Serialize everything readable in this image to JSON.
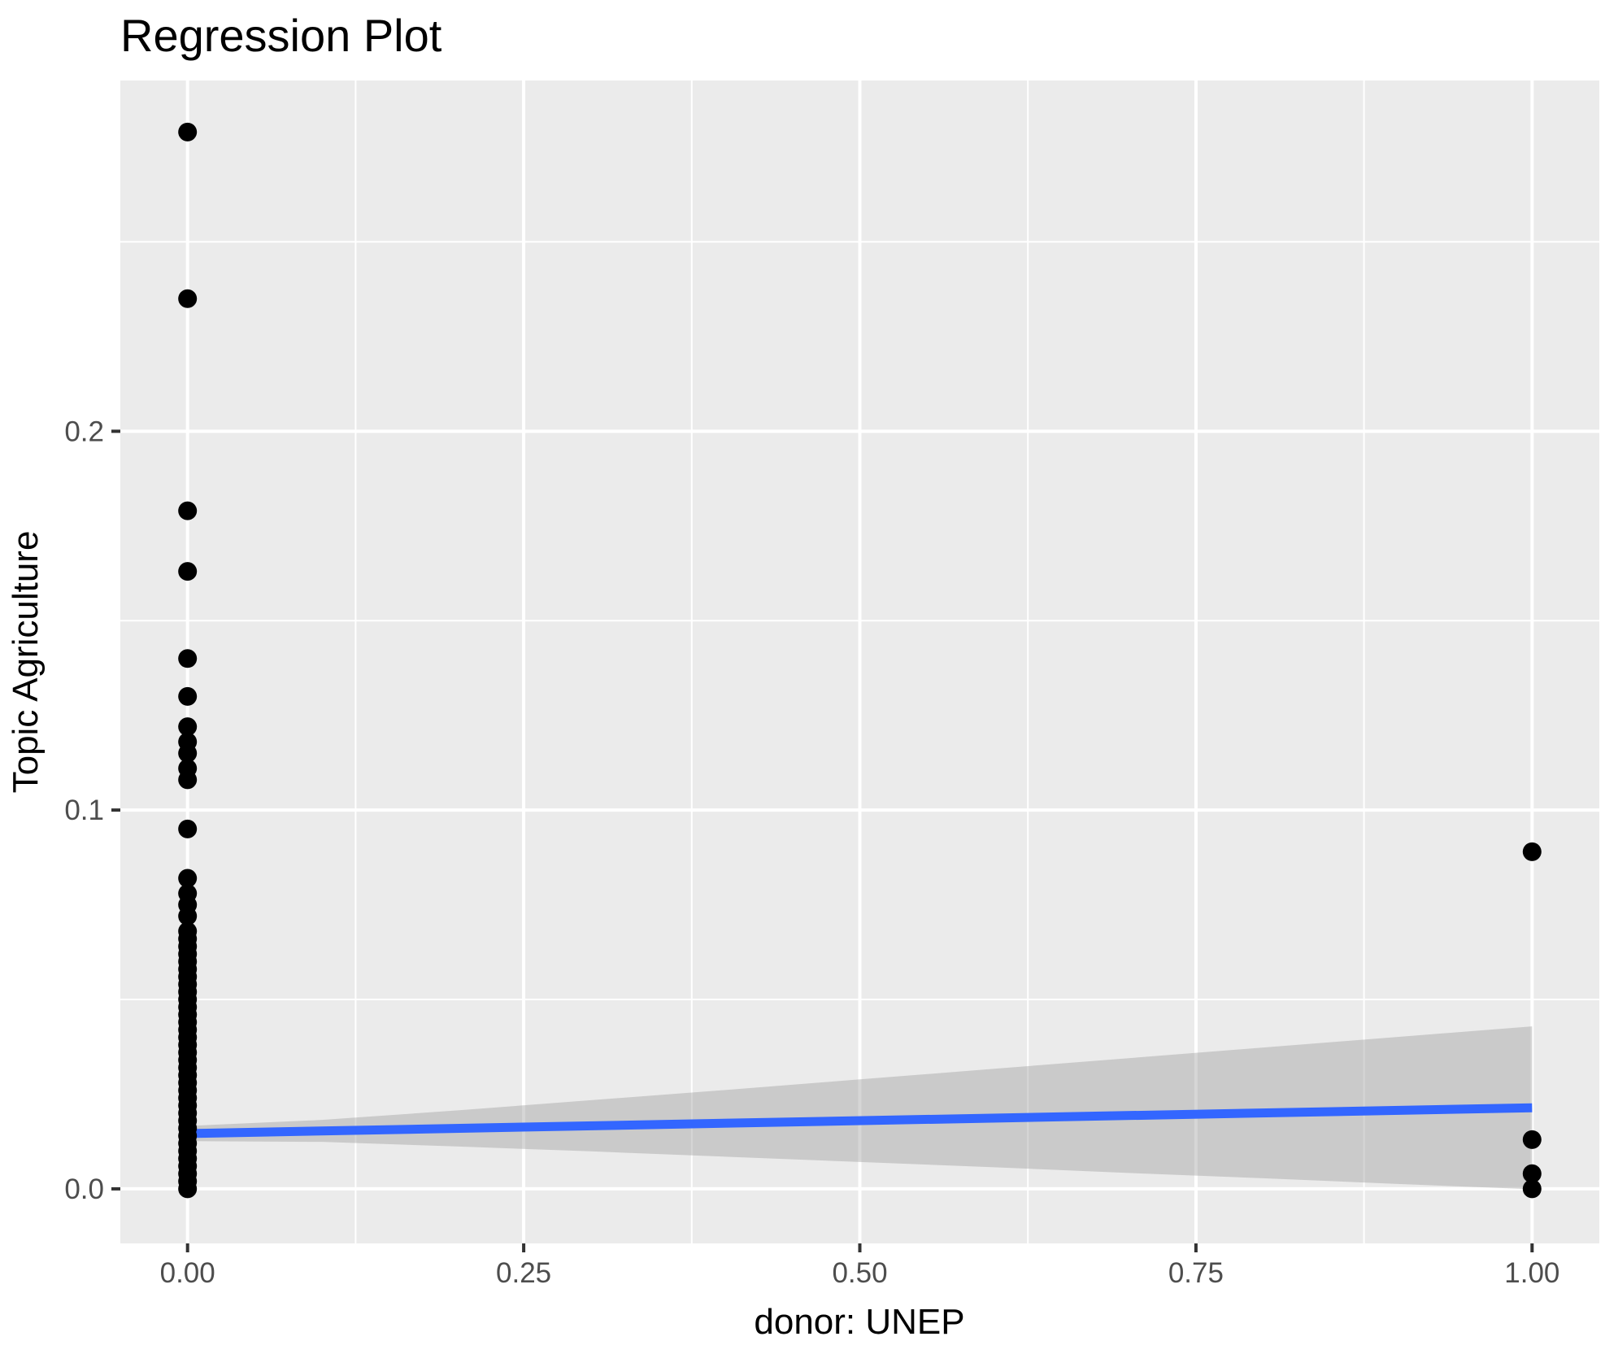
{
  "chart_data": {
    "type": "scatter",
    "title": "Regression Plot",
    "xlabel": "donor: UNEP",
    "ylabel": "Topic Agriculture",
    "xlim": [
      -0.05,
      1.05
    ],
    "ylim": [
      -0.0144,
      0.2926
    ],
    "grid": true,
    "legend_position": "none",
    "x_ticks": {
      "values": [
        0,
        0.25,
        0.5,
        0.75,
        1.0
      ],
      "labels": [
        "0.00",
        "0.25",
        "0.50",
        "0.75",
        "1.00"
      ]
    },
    "y_ticks": {
      "values": [
        0,
        0.1,
        0.2
      ],
      "labels": [
        "0.0",
        "0.1",
        "0.2"
      ]
    },
    "x_minor": [
      0.125,
      0.375,
      0.625,
      0.875
    ],
    "y_minor": [
      0.05,
      0.15,
      0.25
    ],
    "points": [
      {
        "name": "donor-0",
        "x": 0,
        "y": [
          0.279,
          0.235,
          0.179,
          0.163,
          0.14,
          0.13,
          0.122,
          0.118,
          0.115,
          0.111,
          0.108,
          0.095,
          0.082,
          0.078,
          0.075,
          0.072,
          0.068,
          0.066,
          0.064,
          0.062,
          0.06,
          0.058,
          0.056,
          0.054,
          0.052,
          0.05,
          0.048,
          0.046,
          0.044,
          0.042,
          0.04,
          0.038,
          0.036,
          0.034,
          0.032,
          0.03,
          0.028,
          0.026,
          0.024,
          0.022,
          0.02,
          0.018,
          0.016,
          0.014,
          0.012,
          0.01,
          0.008,
          0.006,
          0.004,
          0.002,
          0.0
        ]
      },
      {
        "name": "donor-1",
        "x": 1,
        "y": [
          0.089,
          0.013,
          0.004,
          0.0
        ]
      }
    ],
    "regression_line": {
      "x": [
        0,
        1
      ],
      "y": [
        0.0146,
        0.0214
      ]
    },
    "ci_band": {
      "x": [
        0,
        0.1,
        0.2,
        0.3,
        0.4,
        0.5,
        0.6,
        0.7,
        0.8,
        0.9,
        1.0
      ],
      "upper": [
        0.0166,
        0.0182,
        0.0207,
        0.0234,
        0.0261,
        0.0289,
        0.0317,
        0.0345,
        0.0373,
        0.0401,
        0.0429
      ],
      "lower": [
        0.0126,
        0.0124,
        0.0112,
        0.0099,
        0.0085,
        0.0071,
        0.0057,
        0.0042,
        0.0028,
        0.0013,
        -0.0001
      ]
    },
    "colors": {
      "panel_background": "#EBEBEB",
      "gridline": "#FFFFFF",
      "point": "#000000",
      "regression_line": "#3366FF",
      "ci_band": "#999999",
      "ci_band_opacity": 0.4,
      "tick_text": "#4D4D4D",
      "tick_mark": "#333333",
      "title_text": "#000000"
    }
  }
}
